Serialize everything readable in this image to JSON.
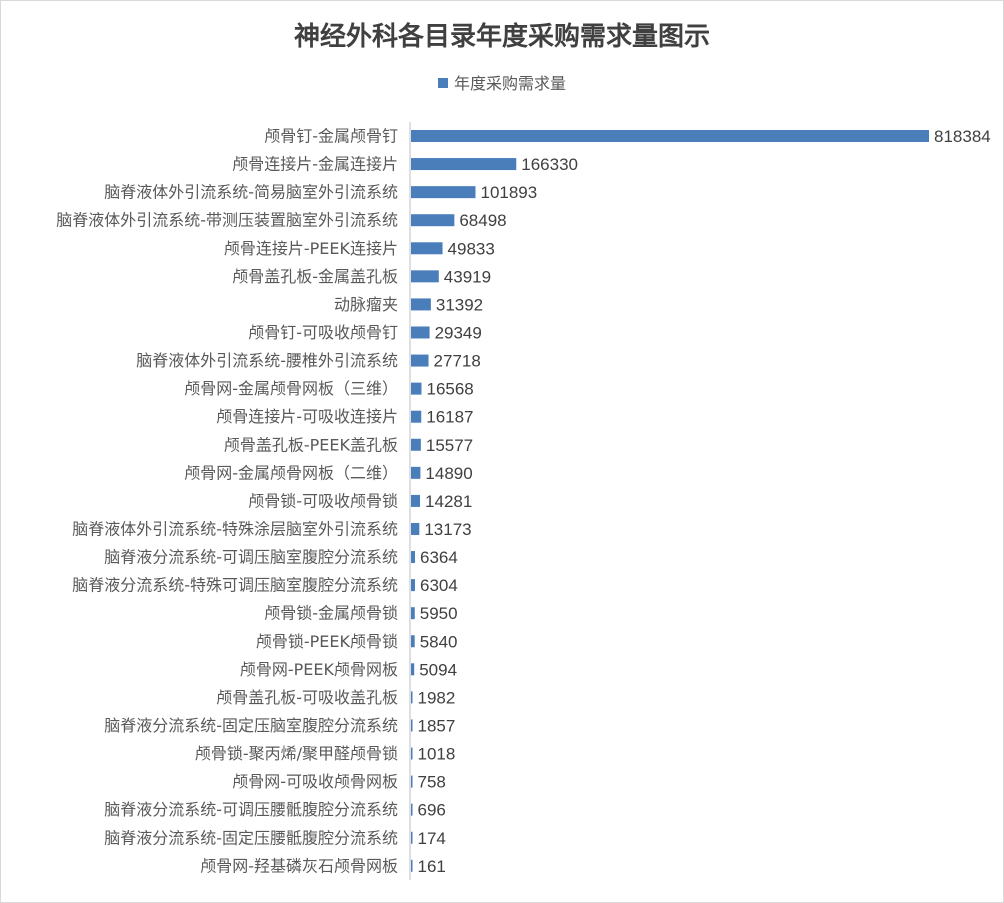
{
  "chart_data": {
    "type": "bar",
    "orientation": "horizontal",
    "title": "神经外科各目录年度采购需求量图示",
    "legend_position": "top",
    "grid": false,
    "categories": [
      "颅骨钉-金属颅骨钉",
      "颅骨连接片-金属连接片",
      "脑脊液体外引流系统-简易脑室外引流系统",
      "脑脊液体外引流系统-带测压装置脑室外引流系统",
      "颅骨连接片-PEEK连接片",
      "颅骨盖孔板-金属盖孔板",
      "动脉瘤夹",
      "颅骨钉-可吸收颅骨钉",
      "脑脊液体外引流系统-腰椎外引流系统",
      "颅骨网-金属颅骨网板（三维）",
      "颅骨连接片-可吸收连接片",
      "颅骨盖孔板-PEEK盖孔板",
      "颅骨网-金属颅骨网板（二维）",
      "颅骨锁-可吸收颅骨锁",
      "脑脊液体外引流系统-特殊涂层脑室外引流系统",
      "脑脊液分流系统-可调压脑室腹腔分流系统",
      "脑脊液分流系统-特殊可调压脑室腹腔分流系统",
      "颅骨锁-金属颅骨锁",
      "颅骨锁-PEEK颅骨锁",
      "颅骨网-PEEK颅骨网板",
      "颅骨盖孔板-可吸收盖孔板",
      "脑脊液分流系统-固定压脑室腹腔分流系统",
      "颅骨锁-聚丙烯/聚甲醛颅骨锁",
      "颅骨网-可吸收颅骨网板",
      "脑脊液分流系统-可调压腰骶腹腔分流系统",
      "脑脊液分流系统-固定压腰骶腹腔分流系统",
      "颅骨网-羟基磷灰石颅骨网板"
    ],
    "series": [
      {
        "name": "年度采购需求量",
        "color": "#4a7ebb",
        "values": [
          818384,
          166330,
          101893,
          68498,
          49833,
          43919,
          31392,
          29349,
          27718,
          16568,
          16187,
          15577,
          14890,
          14281,
          13173,
          6364,
          6304,
          5950,
          5840,
          5094,
          1982,
          1857,
          1018,
          758,
          696,
          174,
          161
        ]
      }
    ],
    "xlim": [
      0,
      818384
    ]
  }
}
